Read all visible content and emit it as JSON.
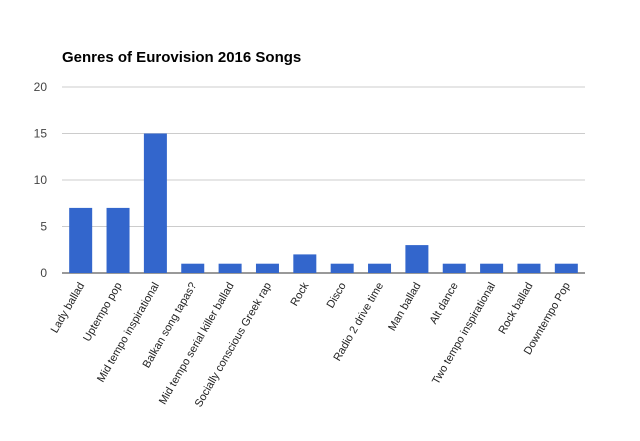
{
  "chart_data": {
    "type": "bar",
    "title": "Genres of Eurovision 2016 Songs",
    "xlabel": "",
    "ylabel": "",
    "ylim": [
      0,
      20
    ],
    "yticks": [
      0,
      5,
      10,
      15,
      20
    ],
    "grid": true,
    "legend": "none",
    "bar_color": "#3366cc",
    "categories": [
      "Lady ballad",
      "Uptempo pop",
      "Mid tempo inspirational",
      "Balkan song tapas?",
      "Mid tempo serial killer ballad",
      "Socially conscious Greek rap",
      "Rock",
      "Disco",
      "Radio 2 drive time",
      "Man ballad",
      "Alt dance",
      "Two tempo inspirational",
      "Rock ballad",
      "Downtempo Pop"
    ],
    "values": [
      7,
      7,
      15,
      1,
      1,
      1,
      2,
      1,
      1,
      3,
      1,
      1,
      1,
      1
    ]
  }
}
